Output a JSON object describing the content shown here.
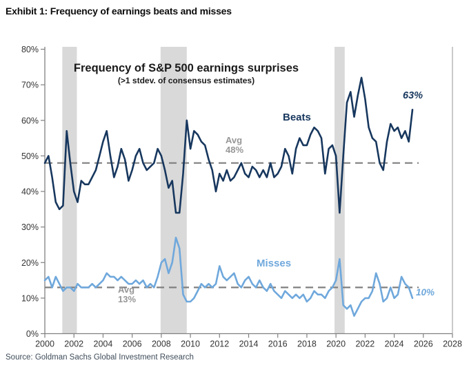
{
  "header": {
    "exhibit_title": "Exhibit 1: Frequency of earnings beats and misses"
  },
  "footer": {
    "source": "Source: Goldman Sachs Global Investment Research"
  },
  "chart_data": {
    "type": "line",
    "title": "Frequency of S&P 500 earnings surprises",
    "subtitle": "(>1 stdev. of consensus estimates)",
    "xlim": [
      2000,
      2028
    ],
    "ylim": [
      0,
      80
    ],
    "grid": false,
    "legend_position": "inline-annotations",
    "x_ticks": [
      "2000",
      "2002",
      "2004",
      "2006",
      "2008",
      "2010",
      "2012",
      "2014",
      "2016",
      "2018",
      "2020",
      "2022",
      "2024",
      "2026",
      "2028"
    ],
    "x_tick_years": [
      2000,
      2002,
      2004,
      2006,
      2008,
      2010,
      2012,
      2014,
      2016,
      2018,
      2020,
      2022,
      2024,
      2026,
      2028
    ],
    "y_ticks": [
      "0%",
      "10%",
      "20%",
      "30%",
      "40%",
      "50%",
      "60%",
      "70%",
      "80%"
    ],
    "y_tick_values": [
      0,
      10,
      20,
      30,
      40,
      50,
      60,
      70,
      80
    ],
    "x_start": 2000.0,
    "x_step": 0.25,
    "recession_bands": [
      [
        2001.2,
        2002.2
      ],
      [
        2007.95,
        2009.75
      ],
      [
        2019.9,
        2020.6
      ]
    ],
    "band_color": "#d9d9d9",
    "avg_line_color": "#7f7f7f",
    "axis_color": "#808080",
    "series": [
      {
        "name": "Beats",
        "color": "#17375e",
        "average": 48,
        "end_value": 63,
        "values": [
          48,
          50,
          44,
          37,
          35,
          36,
          57,
          48,
          40,
          37,
          43,
          42,
          42,
          44,
          46,
          50,
          54,
          57,
          50,
          44,
          47,
          52,
          49,
          43,
          46,
          50,
          52,
          48,
          46,
          47,
          48,
          52,
          50,
          46,
          41,
          43,
          34,
          34,
          45,
          60,
          52,
          57,
          56,
          54,
          53,
          49,
          46,
          40,
          45,
          43,
          46,
          43,
          44,
          46,
          48,
          45,
          44,
          47,
          46,
          44,
          46,
          44,
          48,
          44,
          45,
          47,
          52,
          50,
          45,
          52,
          55,
          53,
          53,
          56,
          58,
          57,
          55,
          45,
          52,
          53,
          50,
          34,
          50,
          65,
          68,
          61,
          67,
          72,
          66,
          58,
          55,
          54,
          48,
          46,
          54,
          59,
          57,
          58,
          55,
          57,
          54,
          63
        ]
      },
      {
        "name": "Misses",
        "color": "#6fa8dc",
        "average": 13,
        "end_value": 10,
        "values": [
          15,
          16,
          13,
          16,
          14,
          12,
          13,
          13,
          12,
          14,
          13,
          13,
          13,
          14,
          13,
          14,
          15,
          17,
          16,
          16,
          15,
          16,
          15,
          14,
          14,
          15,
          14,
          15,
          13,
          14,
          13,
          16,
          20,
          21,
          17,
          20,
          27,
          24,
          11,
          9,
          9,
          10,
          12,
          14,
          13,
          14,
          13,
          14,
          19,
          16,
          15,
          16,
          17,
          14,
          13,
          15,
          16,
          14,
          13,
          15,
          13,
          12,
          14,
          12,
          11,
          10,
          12,
          11,
          10,
          11,
          10,
          11,
          9,
          10,
          12,
          11,
          11,
          10,
          12,
          13,
          15,
          21,
          8,
          7,
          8,
          5,
          7,
          9,
          10,
          10,
          12,
          17,
          14,
          9,
          10,
          13,
          10,
          11,
          16,
          14,
          13,
          10
        ]
      }
    ],
    "annotations": {
      "beats_label": "Beats",
      "beats_end_label": "63%",
      "beats_avg_word": "Avg",
      "beats_avg_value": "48%",
      "misses_label": "Misses",
      "misses_end_label": "10%",
      "misses_avg_word": "Avg",
      "misses_avg_value": "13%"
    }
  }
}
